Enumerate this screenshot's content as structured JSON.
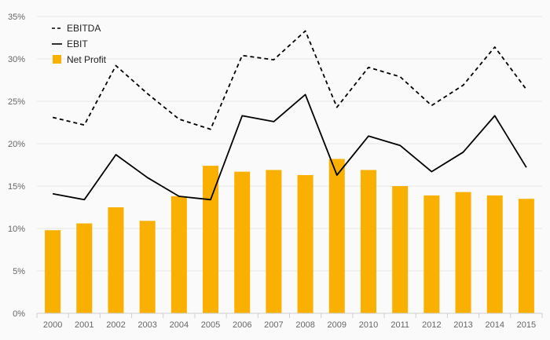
{
  "chart_data": {
    "type": "bar",
    "categories": [
      "2000",
      "2001",
      "2002",
      "2003",
      "2004",
      "2005",
      "2006",
      "2007",
      "2008",
      "2009",
      "2010",
      "2011",
      "2012",
      "2013",
      "2014",
      "2015"
    ],
    "series": [
      {
        "name": "EBITDA",
        "type": "line",
        "style": "dashed",
        "color": "#000000",
        "values": [
          23.1,
          22.2,
          29.2,
          25.9,
          22.9,
          21.7,
          30.4,
          29.9,
          33.3,
          24.3,
          29.0,
          27.9,
          24.5,
          26.9,
          31.4,
          26.4
        ]
      },
      {
        "name": "EBIT",
        "type": "line",
        "style": "solid",
        "color": "#000000",
        "values": [
          14.1,
          13.4,
          18.7,
          16.0,
          13.8,
          13.4,
          23.3,
          22.6,
          25.8,
          16.3,
          20.9,
          19.8,
          16.7,
          19.0,
          23.3,
          17.2
        ]
      },
      {
        "name": "Net Profit",
        "type": "bar",
        "color": "#f9b000",
        "values": [
          9.8,
          10.6,
          12.5,
          10.9,
          13.8,
          17.4,
          16.7,
          16.9,
          16.3,
          18.2,
          16.9,
          15.0,
          13.9,
          14.3,
          13.9,
          13.5
        ]
      }
    ],
    "ylim": [
      0,
      35
    ],
    "yticks": [
      "0%",
      "5%",
      "10%",
      "15%",
      "20%",
      "25%",
      "30%",
      "35%"
    ],
    "grid": true,
    "legend_position": "top-left"
  }
}
